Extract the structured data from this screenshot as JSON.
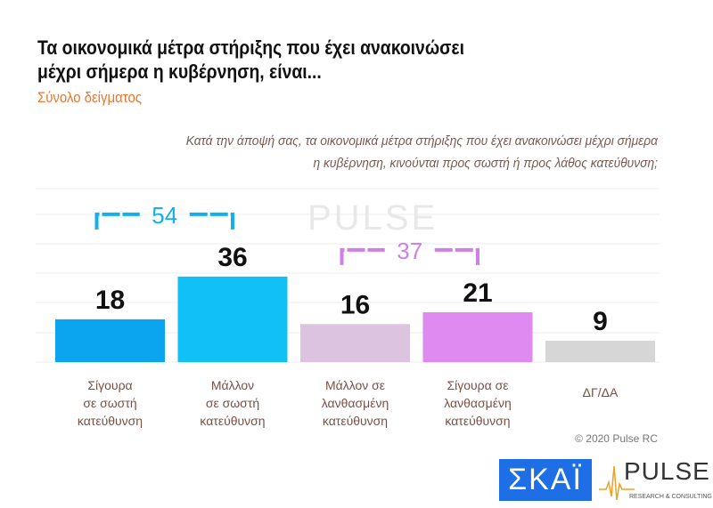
{
  "title_lines": [
    "Τα οικονομικά μέτρα στήριξης που έχει ανακοινώσει",
    "μέχρι σήμερα η κυβέρνηση, είναι..."
  ],
  "subtitle": "Σύνολο δείγματος",
  "question_lines": [
    "Κατά την άποψή σας, τα οικονομικά μέτρα στήριξης που έχει ανακοινώσει μέχρι σήμερα",
    "η κυβέρνηση, κινούνται προς σωστή ή προς λάθος κατεύθυνση;"
  ],
  "copyright": "© 2020 Pulse RC",
  "logos": {
    "skai": "ΣΚΑΪ",
    "pulse": "PULSE",
    "pulse_tagline": "RESEARCH & CONSULTING"
  },
  "chart_data": {
    "type": "bar",
    "categories": [
      [
        "Σίγουρα",
        "σε σωστή",
        "κατεύθυνση"
      ],
      [
        "Μάλλον",
        "σε σωστή",
        "κατεύθυνση"
      ],
      [
        "Μάλλον σε",
        "λανθασμένη",
        "κατεύθυνση"
      ],
      [
        "Σίγουρα σε",
        "λανθασμένη",
        "κατεύθυνση"
      ],
      [
        "ΔΓ/ΔΑ"
      ]
    ],
    "values": [
      18,
      36,
      16,
      21,
      9
    ],
    "colors": [
      "#0aa5ee",
      "#12c0f8",
      "#dcc4e0",
      "#de8af0",
      "#d6d6d6"
    ],
    "groups": [
      {
        "label": "54",
        "from": 0,
        "to": 1,
        "color": "#12b0f0"
      },
      {
        "label": "37",
        "from": 2,
        "to": 3,
        "color": "#d07ee8"
      }
    ],
    "ylim": [
      0,
      60
    ],
    "grid": true
  }
}
